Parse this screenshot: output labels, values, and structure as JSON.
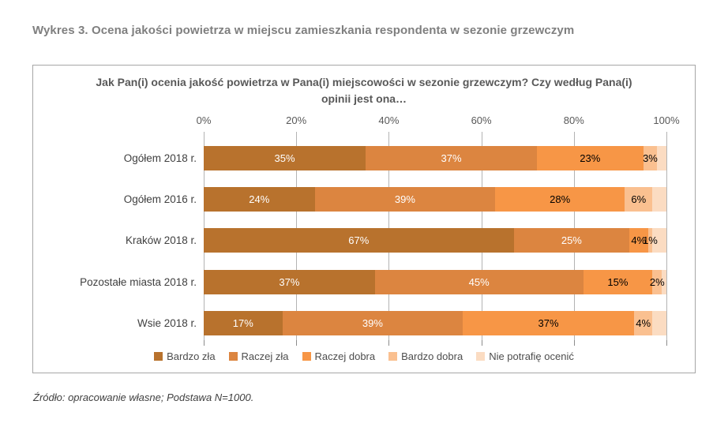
{
  "page": {
    "title": "Wykres 3. Ocena jakości powietrza w miejscu zamieszkania respondenta w sezonie grzewczym",
    "source_note": "Źródło: opracowanie własne; Podstawa N=1000."
  },
  "chart_data": {
    "type": "bar",
    "orientation": "horizontal",
    "stacked": true,
    "title": "Jak Pan(i) ocenia jakość powietrza w Pana(i) miejscowości w sezonie grzewczym? Czy według Pana(i) opinii jest ona…",
    "categories": [
      "Ogółem 2018 r.",
      "Ogółem 2016 r.",
      "Kraków 2018 r.",
      "Pozostałe miasta 2018 r.",
      "Wsie 2018 r."
    ],
    "series": [
      {
        "name": "Bardzo zła",
        "color": "#b8722d",
        "label_color": "#ffffff",
        "show_labels": true,
        "values": [
          35,
          24,
          67,
          37,
          17
        ]
      },
      {
        "name": "Raczej zła",
        "color": "#dc8540",
        "label_color": "#ffffff",
        "show_labels": true,
        "values": [
          37,
          39,
          25,
          45,
          39
        ]
      },
      {
        "name": "Raczej dobra",
        "color": "#f79646",
        "label_color": "#000000",
        "show_labels": true,
        "values": [
          23,
          28,
          4,
          15,
          37
        ]
      },
      {
        "name": "Bardzo dobra",
        "color": "#fac090",
        "label_color": "#000000",
        "show_labels": true,
        "values": [
          3,
          6,
          1,
          2,
          4
        ]
      },
      {
        "name": "Nie potrafię ocenić",
        "color": "#fbdcc2",
        "label_color": "#000000",
        "show_labels": false,
        "values": [
          2,
          3,
          3,
          1,
          3
        ]
      }
    ],
    "value_suffix": "%",
    "x_axis": {
      "min": 0,
      "max": 100,
      "tick_labels": [
        "0%",
        "20%",
        "40%",
        "60%",
        "80%",
        "100%"
      ],
      "tick_values": [
        0,
        20,
        40,
        60,
        80,
        100
      ]
    },
    "grid": true,
    "legend_position": "bottom"
  }
}
